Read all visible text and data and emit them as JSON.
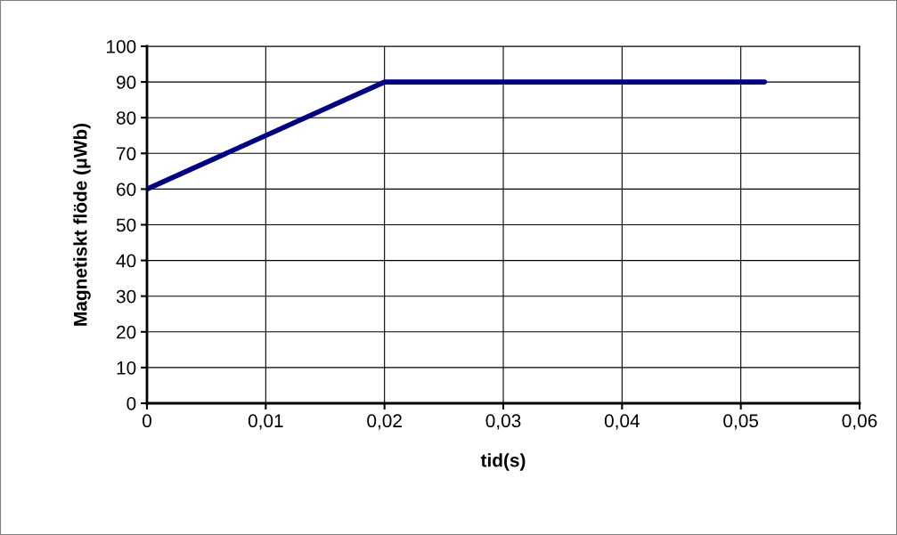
{
  "chart_data": {
    "type": "line",
    "xlabel": "tid(s)",
    "ylabel": "Magnetiskt flöde (μWb)",
    "x": [
      0,
      0.02,
      0.052
    ],
    "series": [
      {
        "color": "#000080",
        "values": [
          60,
          90,
          90
        ]
      }
    ],
    "xlim": [
      0,
      0.06
    ],
    "ylim": [
      0,
      100
    ],
    "xticks": [
      0,
      {
        "value": 0.01,
        "label": "0,01"
      },
      {
        "value": 0.02,
        "label": "0,02"
      },
      {
        "value": 0.03,
        "label": "0,03"
      },
      {
        "value": 0.04,
        "label": "0,04"
      },
      {
        "value": 0.05,
        "label": "0,05"
      },
      {
        "value": 0.06,
        "label": "0,06"
      }
    ],
    "yticks": [
      0,
      10,
      20,
      30,
      40,
      50,
      60,
      70,
      80,
      90,
      100
    ],
    "grid": true,
    "marker": "none",
    "line_style": "solid"
  }
}
